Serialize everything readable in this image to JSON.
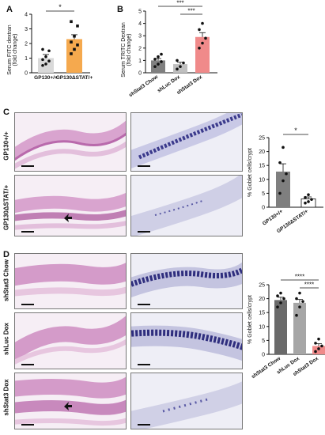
{
  "panels": {
    "A": {
      "letter": "A",
      "ylabel_line1": "Serum FITC dextran",
      "ylabel_line2": "(fold change)",
      "significance": "*",
      "colors": {
        "bar1": "#d9d9d9",
        "bar2": "#f5a94e"
      }
    },
    "B": {
      "letter": "B",
      "ylabel_line1": "Serum TRITC Dextran",
      "ylabel_line2": "(fold change)",
      "significance_top": "***",
      "significance_mid": "***",
      "colors": {
        "bar1": "#808080",
        "bar2": "#bfbfbf",
        "bar3": "#f08a8a"
      }
    },
    "C": {
      "letter": "C",
      "row_labels": [
        "GP130+/+",
        "GP130ΔSTAT/+"
      ],
      "significance": "*",
      "ylabel": "% Goblet cells/crypt"
    },
    "D": {
      "letter": "D",
      "row_labels": [
        "shStat3 Chow",
        "shLuc Dox",
        "shStat3 Dox"
      ],
      "significance_top": "****",
      "significance_mid": "****",
      "ylabel": "% Goblet cells/crypt"
    }
  },
  "chart_data": [
    {
      "type": "bar",
      "panel": "A",
      "categories": [
        "GP130+/+",
        "GP130ΔSTAT/+"
      ],
      "values": [
        1.0,
        2.3
      ],
      "errors": [
        0.25,
        0.3
      ],
      "points": [
        [
          0.5,
          0.6,
          0.8,
          0.9,
          1.1,
          1.5,
          1.6
        ],
        [
          1.3,
          1.6,
          1.9,
          2.1,
          2.5,
          3.2,
          3.5
        ]
      ],
      "yticks": [
        0,
        1,
        2,
        3,
        4
      ],
      "ylim": [
        0,
        4
      ],
      "ylabel": "Serum FITC dextran (fold change)"
    },
    {
      "type": "bar",
      "panel": "B",
      "categories": [
        "shStat3 Chow",
        "shLuc Dox",
        "shStat3 Dox"
      ],
      "values": [
        1.0,
        0.7,
        2.9
      ],
      "errors": [
        0.15,
        0.15,
        0.35
      ],
      "points": [
        [
          0.5,
          0.7,
          0.9,
          1.1,
          1.3,
          1.5
        ],
        [
          0.3,
          0.5,
          0.8,
          1.0
        ],
        [
          2.0,
          2.4,
          2.8,
          3.5,
          4.0
        ]
      ],
      "yticks": [
        0,
        1,
        2,
        3,
        4,
        5
      ],
      "ylim": [
        0,
        5
      ],
      "ylabel": "Serum TRITC Dextran (fold change)"
    },
    {
      "type": "bar",
      "panel": "C",
      "categories": [
        "GP130+/+",
        "GP130ΔSTAT/+"
      ],
      "values": [
        12.8,
        3.0
      ],
      "errors": [
        2.8,
        0.7
      ],
      "points": [
        [
          5.0,
          9.5,
          12.0,
          16.0,
          21.5
        ],
        [
          1.5,
          2.0,
          2.8,
          3.5,
          4.5
        ]
      ],
      "yticks": [
        0,
        5,
        10,
        15,
        20,
        25
      ],
      "ylim": [
        0,
        25
      ],
      "ylabel": "% Goblet cells/crypt"
    },
    {
      "type": "bar",
      "panel": "D",
      "categories": [
        "shStat3 Chow",
        "shLuc Dox",
        "shStat3 Dox"
      ],
      "values": [
        19.5,
        18.5,
        3.0
      ],
      "errors": [
        1.0,
        1.2,
        0.8
      ],
      "points": [
        [
          17.0,
          18.5,
          20.0,
          21.0,
          22.0
        ],
        [
          14.0,
          17.0,
          19.0,
          20.0,
          22.0
        ],
        [
          1.0,
          2.0,
          3.0,
          4.0,
          5.5
        ]
      ],
      "yticks": [
        0,
        5,
        10,
        15,
        20,
        25
      ],
      "ylim": [
        0,
        25
      ],
      "ylabel": "% Goblet cells/crypt"
    }
  ]
}
